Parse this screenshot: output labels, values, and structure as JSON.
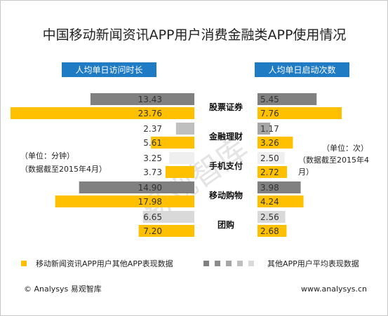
{
  "title": "中国移动新闻资讯APP用户消费金融类APP使用情况",
  "left_header": "人均单日访问时长",
  "right_header": "人均单日启动次数",
  "left_note": [
    "（单位：分钟）",
    "（数据截至2015年4月）"
  ],
  "right_note": [
    "（单位：次）",
    "（数据截至2015年4",
    "月）"
  ],
  "legend": {
    "series_a": "移动新闻资讯APP用户其他APP表现数据",
    "series_b": "其他APP用户平均表现数据"
  },
  "footer": {
    "left": "© Analysys 易观智库",
    "right": "www.analysys.cn"
  },
  "watermark": "易观智库",
  "colors": {
    "header_blue": "#1f7bc4",
    "gold": "#ffc000",
    "dark_gray": "#808080",
    "mid_gray": "#a6a6a6",
    "light_gray": "#d9d9d9"
  },
  "chart_data": [
    {
      "type": "bar",
      "orientation": "horizontal-mirrored-left",
      "title": "人均单日访问时长",
      "unit": "分钟",
      "categories": [
        "股票证券",
        "金融理财",
        "手机支付",
        "移动购物",
        "团购"
      ],
      "series": [
        {
          "name": "其他APP用户平均表现数据",
          "values": [
            13.43,
            2.37,
            3.25,
            14.9,
            6.65
          ],
          "labels": [
            "13.43",
            "2.37",
            "3.25",
            "14.90",
            "6.65"
          ]
        },
        {
          "name": "移动新闻资讯APP用户其他APP表现数据",
          "values": [
            23.76,
            5.61,
            3.73,
            17.98,
            7.2
          ],
          "labels": [
            "23.76",
            "5.61",
            "3.73",
            "17.98",
            "7.20"
          ]
        }
      ]
    },
    {
      "type": "bar",
      "orientation": "horizontal",
      "title": "人均单日启动次数",
      "unit": "次",
      "categories": [
        "股票证券",
        "金融理财",
        "手机支付",
        "移动购物",
        "团购"
      ],
      "series": [
        {
          "name": "其他APP用户平均表现数据",
          "values": [
            5.45,
            1.17,
            2.5,
            3.98,
            2.56
          ],
          "labels": [
            "5.45",
            "1.17",
            "2.50",
            "3.98",
            "2.56"
          ]
        },
        {
          "name": "移动新闻资讯APP用户其他APP表现数据",
          "values": [
            7.76,
            3.26,
            2.72,
            4.24,
            2.68
          ],
          "labels": [
            "7.76",
            "3.26",
            "2.72",
            "4.24",
            "2.68"
          ]
        }
      ]
    }
  ]
}
